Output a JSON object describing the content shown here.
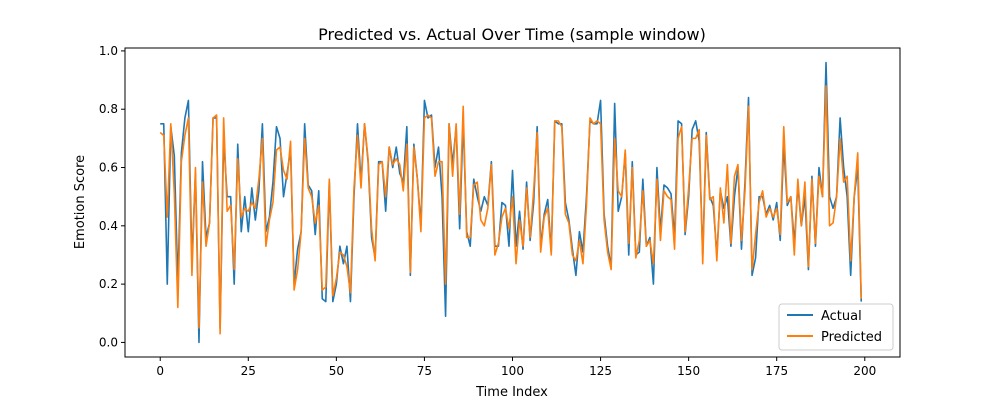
{
  "chart_data": {
    "type": "line",
    "title": "Predicted vs. Actual Over Time (sample window)",
    "xlabel": "Time Index",
    "ylabel": "Emotion Score",
    "xlim": [
      -10,
      210
    ],
    "ylim": [
      -0.05,
      1.01
    ],
    "xticks": [
      0,
      25,
      50,
      75,
      100,
      125,
      150,
      175,
      200
    ],
    "xtick_labels": [
      "0",
      "25",
      "50",
      "75",
      "100",
      "125",
      "150",
      "175",
      "200"
    ],
    "yticks": [
      0.0,
      0.2,
      0.4,
      0.6,
      0.8,
      1.0
    ],
    "ytick_labels": [
      "0.0",
      "0.2",
      "0.4",
      "0.6",
      "0.8",
      "1.0"
    ],
    "grid": false,
    "legend_position": "lower-right",
    "x": [
      0,
      1,
      2,
      3,
      4,
      5,
      6,
      7,
      8,
      9,
      10,
      11,
      12,
      13,
      14,
      15,
      16,
      17,
      18,
      19,
      20,
      21,
      22,
      23,
      24,
      25,
      26,
      27,
      28,
      29,
      30,
      31,
      32,
      33,
      34,
      35,
      36,
      37,
      38,
      39,
      40,
      41,
      42,
      43,
      44,
      45,
      46,
      47,
      48,
      49,
      50,
      51,
      52,
      53,
      54,
      55,
      56,
      57,
      58,
      59,
      60,
      61,
      62,
      63,
      64,
      65,
      66,
      67,
      68,
      69,
      70,
      71,
      72,
      73,
      74,
      75,
      76,
      77,
      78,
      79,
      80,
      81,
      82,
      83,
      84,
      85,
      86,
      87,
      88,
      89,
      90,
      91,
      92,
      93,
      94,
      95,
      96,
      97,
      98,
      99,
      100,
      101,
      102,
      103,
      104,
      105,
      106,
      107,
      108,
      109,
      110,
      111,
      112,
      113,
      114,
      115,
      116,
      117,
      118,
      119,
      120,
      121,
      122,
      123,
      124,
      125,
      126,
      127,
      128,
      129,
      130,
      131,
      132,
      133,
      134,
      135,
      136,
      137,
      138,
      139,
      140,
      141,
      142,
      143,
      144,
      145,
      146,
      147,
      148,
      149,
      150,
      151,
      152,
      153,
      154,
      155,
      156,
      157,
      158,
      159,
      160,
      161,
      162,
      163,
      164,
      165,
      166,
      167,
      168,
      169,
      170,
      171,
      172,
      173,
      174,
      175,
      176,
      177,
      178,
      179,
      180,
      181,
      182,
      183,
      184,
      185,
      186,
      187,
      188,
      189,
      190,
      191,
      192,
      193,
      194,
      195,
      196,
      197,
      198,
      199
    ],
    "series": [
      {
        "name": "Actual",
        "color": "#1f77b4",
        "values": [
          0.75,
          0.75,
          0.2,
          0.74,
          0.64,
          0.2,
          0.65,
          0.77,
          0.83,
          0.28,
          0.58,
          0.0,
          0.62,
          0.36,
          0.41,
          0.77,
          0.77,
          0.05,
          0.7,
          0.5,
          0.5,
          0.2,
          0.68,
          0.38,
          0.5,
          0.38,
          0.53,
          0.42,
          0.52,
          0.75,
          0.38,
          0.43,
          0.55,
          0.74,
          0.7,
          0.5,
          0.58,
          0.66,
          0.2,
          0.32,
          0.38,
          0.75,
          0.54,
          0.52,
          0.37,
          0.52,
          0.15,
          0.14,
          0.55,
          0.14,
          0.2,
          0.33,
          0.27,
          0.33,
          0.14,
          0.5,
          0.75,
          0.55,
          0.75,
          0.62,
          0.36,
          0.29,
          0.62,
          0.62,
          0.45,
          0.67,
          0.6,
          0.67,
          0.58,
          0.55,
          0.74,
          0.23,
          0.68,
          0.56,
          0.4,
          0.83,
          0.77,
          0.78,
          0.6,
          0.67,
          0.5,
          0.09,
          0.75,
          0.61,
          0.74,
          0.39,
          0.76,
          0.38,
          0.33,
          0.56,
          0.5,
          0.45,
          0.5,
          0.47,
          0.62,
          0.33,
          0.33,
          0.48,
          0.47,
          0.33,
          0.59,
          0.33,
          0.45,
          0.32,
          0.55,
          0.35,
          0.48,
          0.74,
          0.33,
          0.44,
          0.49,
          0.31,
          0.76,
          0.75,
          0.75,
          0.48,
          0.42,
          0.32,
          0.23,
          0.38,
          0.31,
          0.5,
          0.76,
          0.75,
          0.75,
          0.83,
          0.44,
          0.33,
          0.26,
          0.82,
          0.45,
          0.5,
          0.65,
          0.3,
          0.62,
          0.3,
          0.31,
          0.56,
          0.33,
          0.36,
          0.2,
          0.6,
          0.38,
          0.54,
          0.53,
          0.51,
          0.36,
          0.76,
          0.75,
          0.37,
          0.5,
          0.73,
          0.76,
          0.69,
          0.3,
          0.72,
          0.5,
          0.47,
          0.3,
          0.52,
          0.46,
          0.5,
          0.33,
          0.5,
          0.6,
          0.32,
          0.55,
          0.84,
          0.23,
          0.29,
          0.5,
          0.5,
          0.44,
          0.47,
          0.42,
          0.48,
          0.35,
          0.68,
          0.47,
          0.5,
          0.34,
          0.54,
          0.4,
          0.5,
          0.25,
          0.57,
          0.33,
          0.6,
          0.5,
          0.96,
          0.5,
          0.46,
          0.5,
          0.77,
          0.6,
          0.5,
          0.23,
          0.5,
          0.6,
          0.14
        ]
      },
      {
        "name": "Predicted",
        "color": "#ff7f0e",
        "values": [
          0.72,
          0.71,
          0.43,
          0.75,
          0.51,
          0.12,
          0.62,
          0.71,
          0.77,
          0.23,
          0.6,
          0.05,
          0.55,
          0.33,
          0.41,
          0.77,
          0.78,
          0.03,
          0.77,
          0.45,
          0.47,
          0.25,
          0.63,
          0.43,
          0.46,
          0.45,
          0.48,
          0.46,
          0.56,
          0.7,
          0.33,
          0.42,
          0.48,
          0.66,
          0.67,
          0.59,
          0.56,
          0.69,
          0.18,
          0.25,
          0.38,
          0.7,
          0.53,
          0.5,
          0.41,
          0.47,
          0.18,
          0.19,
          0.56,
          0.16,
          0.22,
          0.31,
          0.3,
          0.26,
          0.17,
          0.53,
          0.71,
          0.53,
          0.75,
          0.63,
          0.39,
          0.28,
          0.61,
          0.62,
          0.5,
          0.67,
          0.61,
          0.63,
          0.61,
          0.52,
          0.68,
          0.24,
          0.67,
          0.56,
          0.38,
          0.77,
          0.78,
          0.77,
          0.57,
          0.62,
          0.62,
          0.2,
          0.75,
          0.57,
          0.75,
          0.44,
          0.81,
          0.36,
          0.36,
          0.54,
          0.55,
          0.42,
          0.4,
          0.46,
          0.61,
          0.3,
          0.34,
          0.43,
          0.46,
          0.39,
          0.5,
          0.27,
          0.42,
          0.33,
          0.53,
          0.36,
          0.52,
          0.72,
          0.31,
          0.43,
          0.46,
          0.3,
          0.76,
          0.76,
          0.74,
          0.44,
          0.41,
          0.3,
          0.28,
          0.35,
          0.27,
          0.47,
          0.77,
          0.75,
          0.76,
          0.75,
          0.42,
          0.31,
          0.25,
          0.7,
          0.52,
          0.5,
          0.66,
          0.34,
          0.6,
          0.29,
          0.35,
          0.52,
          0.33,
          0.35,
          0.27,
          0.56,
          0.35,
          0.52,
          0.5,
          0.49,
          0.32,
          0.7,
          0.74,
          0.38,
          0.53,
          0.7,
          0.7,
          0.73,
          0.27,
          0.71,
          0.49,
          0.5,
          0.28,
          0.53,
          0.41,
          0.61,
          0.34,
          0.57,
          0.61,
          0.35,
          0.52,
          0.81,
          0.25,
          0.37,
          0.48,
          0.52,
          0.43,
          0.46,
          0.43,
          0.46,
          0.37,
          0.74,
          0.48,
          0.5,
          0.3,
          0.56,
          0.4,
          0.55,
          0.26,
          0.56,
          0.34,
          0.57,
          0.5,
          0.88,
          0.4,
          0.41,
          0.5,
          0.7,
          0.55,
          0.57,
          0.28,
          0.5,
          0.65,
          0.15
        ]
      }
    ]
  }
}
